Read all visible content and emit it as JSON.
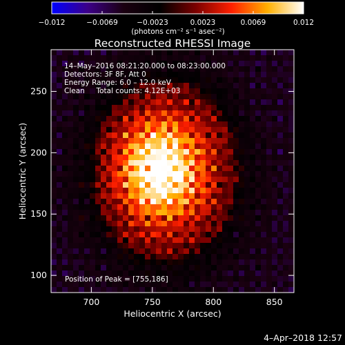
{
  "colorbar": {
    "ticks": [
      "−0.012",
      "−0.0069",
      "−0.0023",
      "0.0023",
      "0.0069",
      "0.012"
    ],
    "unit_label": "(photons cm⁻² s⁻¹ asec⁻²)",
    "colors": [
      "#0000ff",
      "#3c0088",
      "#1a0010",
      "#000000",
      "#7a0000",
      "#ff2000",
      "#ffb000",
      "#ffffff"
    ]
  },
  "title": "Reconstructed RHESSI Image",
  "info_lines": [
    "14–May–2016 08:21:20.000 to 08:23:00.000",
    "Detectors: 3F 8F, Att 0",
    "Energy Range: 6.0 – 12.0 keV",
    "Clean     Total counts: 4.12E+03"
  ],
  "peak_label": "Position of Peak = [755,186]",
  "timestamp": "4–Apr–2018 12:57",
  "chart_data": {
    "type": "heatmap",
    "title": "Reconstructed RHESSI Image",
    "xlabel": "Heliocentric X (arcsec)",
    "ylabel": "Heliocentric Y (arcsec)",
    "xlim": [
      667,
      866
    ],
    "ylim": [
      86,
      284
    ],
    "xticks": [
      700,
      750,
      800,
      850
    ],
    "yticks": [
      100,
      150,
      200,
      250
    ],
    "zlim": [
      -0.012,
      0.012
    ],
    "peak": {
      "x": 755,
      "y": 186
    },
    "source_extent": {
      "x": [
        705,
        815
      ],
      "y": [
        110,
        260
      ]
    }
  }
}
